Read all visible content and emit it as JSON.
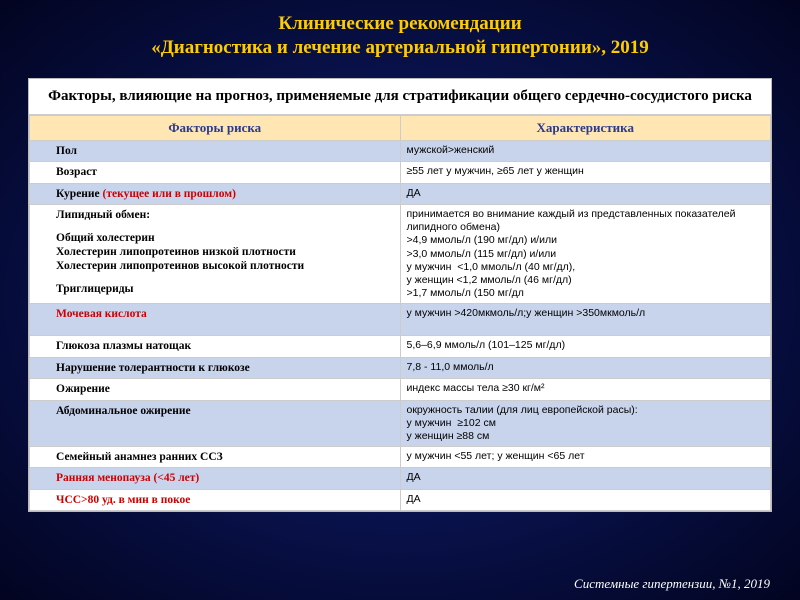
{
  "title": {
    "line1": "Клинические рекомендации",
    "line2": "«Диагностика и лечение артериальной гипертонии», 2019",
    "color": "#ffcc00",
    "font_size_pt": 19,
    "font_weight": "bold"
  },
  "background": {
    "gradient_center": "#1a2a80",
    "gradient_mid": "#0a1555",
    "gradient_edge": "#020420"
  },
  "table": {
    "caption": "Факторы, влияющие на прогноз, применяемые для стратификации общего сердечно-сосудистого риска",
    "caption_fontsize": 15,
    "header_bg": "#ffe6b3",
    "header_text_color": "#2a3a8f",
    "stripe_bg": "#c8d4ec",
    "plain_bg": "#ffffff",
    "border_color": "#cccccc",
    "red_text_color": "#cc0000",
    "col_widths": [
      "50%",
      "50%"
    ],
    "columns": [
      "Факторы риска",
      "Характеристика"
    ],
    "rows": [
      {
        "stripe": true,
        "factor": "Пол",
        "desc": "мужской>женский"
      },
      {
        "stripe": false,
        "factor": "Возраст",
        "desc": "≥55 лет у мужчин, ≥65 лет у женщин"
      },
      {
        "stripe": true,
        "factor_html": "Курение <span class=\"red\">(текущее или в прошлом)</span>",
        "desc": "ДА"
      },
      {
        "stripe": false,
        "factor_html": "Липидный обмен:<span class=\"gap\"></span><span class=\"sub\">Общий холестерин</span><span class=\"sub\">Холестерин липопротеинов низкой плотности</span><span class=\"sub\">Холестерин липопротеинов высокой плотности</span><span class=\"gap\"></span><span class=\"sub\">Триглицериды</span>",
        "desc_html": "принимается во внимание каждый из представленных показателей липидного обмена)<br>>4,9 ммоль/л (190 мг/дл) и/или<br>>3,0 ммоль/л (115 мг/дл) и/или<br>у мужчин &nbsp;<1,0 ммоль/л (40 мг/дл),<br>у женщин <1,2 ммоль/л (46 мг/дл)<br>>1,7 ммоль/л (150 мг/дл"
      },
      {
        "stripe": true,
        "factor_html": "<span class=\"red\">Мочевая кислота</span>",
        "desc": "у мужчин >420мкмоль/л;у женщин >350мкмоль/л",
        "tall": true
      },
      {
        "stripe": false,
        "factor": "Глюкоза плазмы натощак",
        "desc": "5,6–6,9 ммоль/л (101–125 мг/дл)"
      },
      {
        "stripe": true,
        "factor": "Нарушение толерантности к глюкозе",
        "desc": "7,8 - 11,0 ммоль/л"
      },
      {
        "stripe": false,
        "factor": "Ожирение",
        "desc": "индекс массы тела ≥30 кг/м²"
      },
      {
        "stripe": true,
        "factor": "Абдоминальное ожирение",
        "desc_html": "окружность талии (для лиц европейской расы):<br>у мужчин &nbsp;≥102 см<br>у женщин ≥88 см"
      },
      {
        "stripe": false,
        "factor": "Семейный анамнез ранних ССЗ",
        "desc": "у мужчин  <55 лет; у женщин  <65 лет"
      },
      {
        "stripe": true,
        "factor_html": "<span class=\"red\">Ранняя менопауза (<45 лет)</span>",
        "desc": "ДА"
      },
      {
        "stripe": false,
        "factor_html": "<span class=\"red\">ЧСС>80 уд. в мин в покое</span>",
        "desc": "ДА"
      }
    ]
  },
  "footer": {
    "text": "Системные гипертензии, №1, 2019",
    "color": "#ffffff",
    "font_style": "italic",
    "font_size_pt": 13
  }
}
